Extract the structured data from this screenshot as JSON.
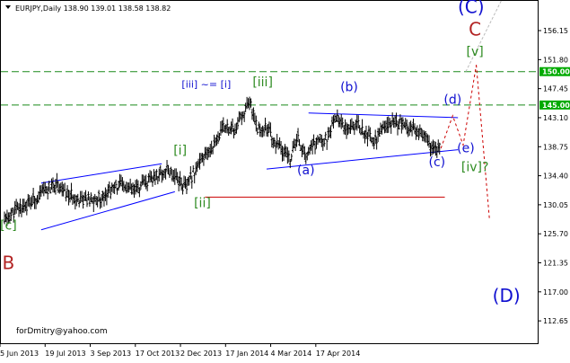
{
  "window": {
    "header_text": "EURJPY,Daily  138.90 139.01 138.58 138.82",
    "watermark": "forDmitry@yahoo.com"
  },
  "colors": {
    "green_label": "#2e8b21",
    "blue_label": "#1010d0",
    "brown_label": "#b22222",
    "dashed_level": "#1a8a1a",
    "trend_line": "#0000ff",
    "support_line": "#cc0000",
    "price_bars": "#000000",
    "badge_bg": "#00aa00"
  },
  "chart_data": {
    "type": "line",
    "title": "EURJPY,Daily",
    "ohlc_header": {
      "open": 138.9,
      "high": 139.01,
      "low": 138.58,
      "close": 138.82
    },
    "x_ticks": [
      "5 Jun 2013",
      "19 Jul 2013",
      "3 Sep 2013",
      "17 Oct 2013",
      "2 Dec 2013",
      "17 Jan 2014",
      "4 Mar 2014",
      "17 Apr 2014"
    ],
    "y_ticks": [
      "156.15",
      "151.80",
      "147.45",
      "143.10",
      "138.75",
      "134.40",
      "130.05",
      "125.70",
      "121.35",
      "117.00",
      "112.65"
    ],
    "ylim": [
      109.3,
      160.6
    ],
    "x_bars": 274,
    "price_path": [
      [
        0,
        127.6
      ],
      [
        10,
        129.5
      ],
      [
        20,
        130.4
      ],
      [
        30,
        132.0
      ],
      [
        40,
        133.2
      ],
      [
        48,
        131.5
      ],
      [
        58,
        131.0
      ],
      [
        68,
        130.5
      ],
      [
        78,
        131.8
      ],
      [
        88,
        133.0
      ],
      [
        98,
        132.0
      ],
      [
        108,
        133.2
      ],
      [
        118,
        134.6
      ],
      [
        124,
        135.4
      ],
      [
        132,
        134.2
      ],
      [
        138,
        132.5
      ],
      [
        146,
        135.5
      ],
      [
        154,
        137.4
      ],
      [
        162,
        140.0
      ],
      [
        170,
        142.1
      ],
      [
        176,
        141.0
      ],
      [
        182,
        143.7
      ],
      [
        188,
        144.9
      ],
      [
        194,
        141.2
      ],
      [
        200,
        141.8
      ],
      [
        206,
        139.4
      ],
      [
        212,
        138.2
      ],
      [
        218,
        137.0
      ],
      [
        224,
        140.0
      ],
      [
        230,
        137.3
      ],
      [
        238,
        139.5
      ],
      [
        246,
        140.0
      ],
      [
        254,
        143.4
      ],
      [
        260,
        141.6
      ],
      [
        266,
        142.4
      ],
      [
        274,
        141.2
      ],
      [
        282,
        139.6
      ],
      [
        290,
        141.4
      ],
      [
        298,
        142.6
      ],
      [
        306,
        141.8
      ],
      [
        312,
        142.1
      ],
      [
        318,
        140.6
      ],
      [
        326,
        138.8
      ],
      [
        332,
        138.2
      ]
    ],
    "horizontal_levels": [
      {
        "label": "150.00",
        "value": 150.0,
        "style": "dashed"
      },
      {
        "label": "145.00",
        "value": 145.0,
        "style": "dashed"
      }
    ],
    "support_level": {
      "value": 131.2,
      "from_bar": 153,
      "to_bar": 336
    },
    "trendlines": [
      {
        "name": "channel upper",
        "points": [
          [
            28,
            133.3
          ],
          [
            120,
            136.2
          ]
        ]
      },
      {
        "name": "channel lower",
        "points": [
          [
            28,
            126.3
          ],
          [
            130,
            132.0
          ]
        ]
      },
      {
        "name": "triangle upper",
        "points": [
          [
            232,
            143.8
          ],
          [
            346,
            143.1
          ]
        ]
      },
      {
        "name": "triangle lower",
        "points": [
          [
            200,
            135.4
          ],
          [
            346,
            138.3
          ]
        ]
      }
    ],
    "projections": [
      {
        "name": "projection up",
        "points": [
          [
            333,
            138.5
          ],
          [
            342,
            143.4
          ],
          [
            350,
            139.0
          ],
          [
            360,
            151.0
          ]
        ],
        "color": "#cc0000",
        "dash": "3,3"
      },
      {
        "name": "projection down",
        "points": [
          [
            360,
            151.0
          ],
          [
            370,
            128.0
          ]
        ],
        "color": "#cc0000",
        "dash": "3,3"
      },
      {
        "name": "guide",
        "points": [
          [
            352,
            150.0
          ],
          [
            380,
            161.0
          ]
        ],
        "color": "#bbbbbb",
        "dash": "3,2"
      }
    ],
    "wave_labels": [
      {
        "text": "[c]",
        "bar": 3,
        "price": 126.3,
        "color": "green"
      },
      {
        "text": "B",
        "bar": 3,
        "price": 120.4,
        "color": "brown"
      },
      {
        "text": "[i]",
        "bar": 134,
        "price": 137.6,
        "color": "green"
      },
      {
        "text": "[ii]",
        "bar": 151,
        "price": 129.7,
        "color": "green"
      },
      {
        "text": "[iii]",
        "bar": 197,
        "price": 147.8,
        "color": "green"
      },
      {
        "text": "[iii] ~= [i]",
        "bar": 154,
        "price": 147.6,
        "color": "blue"
      },
      {
        "text": "(a)",
        "bar": 230,
        "price": 134.6,
        "color": "blue"
      },
      {
        "text": "(b)",
        "bar": 263,
        "price": 147.1,
        "color": "blue"
      },
      {
        "text": "(c)",
        "bar": 330,
        "price": 135.8,
        "color": "blue"
      },
      {
        "text": "(d)",
        "bar": 342,
        "price": 145.2,
        "color": "blue"
      },
      {
        "text": "(e)",
        "bar": 352,
        "price": 137.9,
        "color": "blue"
      },
      {
        "text": "[iv]?",
        "bar": 359,
        "price": 135.1,
        "color": "green"
      },
      {
        "text": "[v]",
        "bar": 359,
        "price": 152.4,
        "color": "green"
      },
      {
        "text": "C",
        "bar": 359,
        "price": 155.4,
        "color": "brown"
      },
      {
        "text": "(C)",
        "bar": 356,
        "price": 158.8,
        "color": "blue"
      },
      {
        "text": "(D)",
        "bar": 383,
        "price": 115.5,
        "color": "blue"
      }
    ]
  }
}
